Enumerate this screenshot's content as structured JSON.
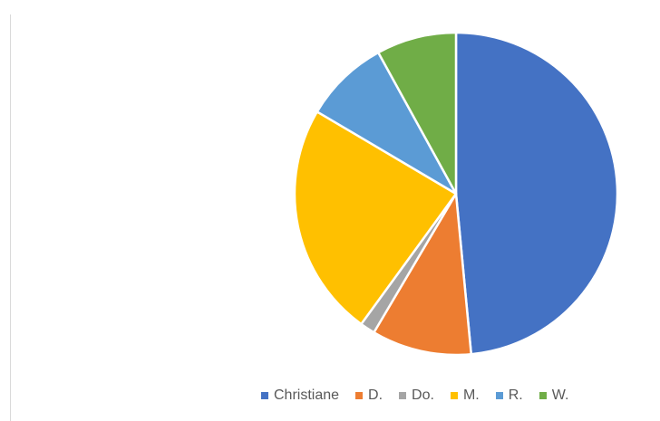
{
  "chart_data": {
    "type": "pie",
    "title": "",
    "categories": [
      "Christiane",
      "D.",
      "Do.",
      "M.",
      "R.",
      "W."
    ],
    "values": [
      48.5,
      10.0,
      1.5,
      23.5,
      8.5,
      8.0
    ],
    "unit": "percent of whole (estimated)",
    "colors": [
      "#4472C4",
      "#ED7D31",
      "#A5A5A5",
      "#FFC000",
      "#5B9BD5",
      "#70AD47"
    ],
    "start_angle": "12 o'clock",
    "direction": "clockwise",
    "slice_border": "#ffffff",
    "legend_position": "bottom"
  }
}
